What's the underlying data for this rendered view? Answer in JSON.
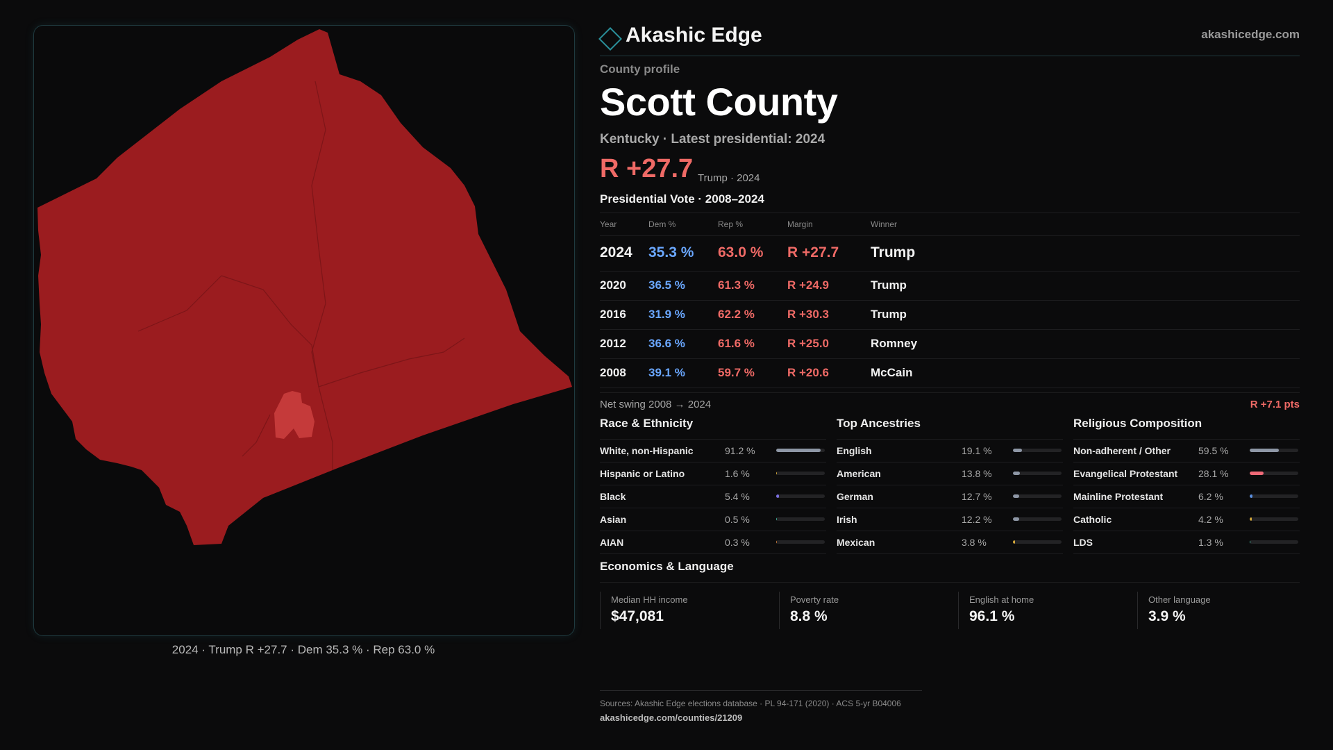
{
  "map": {
    "caption": "2024 · Trump R +27.7 · Dem 35.3 % · Rep 63.0 %",
    "county_fill": "#9b1c1f",
    "city_fill": "#c53a3a"
  },
  "brand": {
    "name": "Akashic Edge",
    "url": "akashicedge.com",
    "logo_icon": "diamond-icon"
  },
  "profile": {
    "label": "County profile",
    "county": "Scott County",
    "subline": "Kentucky · Latest presidential: 2024",
    "margin": "R +27.7",
    "margin_note": "Trump · 2024"
  },
  "vote": {
    "title": "Presidential Vote · 2008–2024",
    "headers": {
      "year": "Year",
      "dem": "Dem %",
      "rep": "Rep %",
      "margin": "Margin",
      "winner": "Winner"
    },
    "rows": [
      {
        "year": "2024",
        "dem": "35.3 %",
        "rep": "63.0 %",
        "margin": "R +27.7",
        "winner": "Trump"
      },
      {
        "year": "2020",
        "dem": "36.5 %",
        "rep": "61.3 %",
        "margin": "R +24.9",
        "winner": "Trump"
      },
      {
        "year": "2016",
        "dem": "31.9 %",
        "rep": "62.2 %",
        "margin": "R +30.3",
        "winner": "Trump"
      },
      {
        "year": "2012",
        "dem": "36.6 %",
        "rep": "61.6 %",
        "margin": "R +25.0",
        "winner": "Romney"
      },
      {
        "year": "2008",
        "dem": "39.1 %",
        "rep": "59.7 %",
        "margin": "R +20.6",
        "winner": "McCain"
      }
    ]
  },
  "swing": {
    "label": "Net swing 2008 → 2024",
    "value": "R +7.1 pts"
  },
  "demographics": [
    {
      "title": "Race & Ethnicity",
      "rows": [
        {
          "name": "White, non-Hispanic",
          "pct": "91.2 %",
          "value": 91.2,
          "color": "#8e97a6"
        },
        {
          "name": "Hispanic or Latino",
          "pct": "1.6 %",
          "value": 1.6,
          "color": "#d4a83a"
        },
        {
          "name": "Black",
          "pct": "5.4 %",
          "value": 5.4,
          "color": "#7b6fe0"
        },
        {
          "name": "Asian",
          "pct": "0.5 %",
          "value": 0.5,
          "color": "#3fb39a"
        },
        {
          "name": "AIAN",
          "pct": "0.3 %",
          "value": 0.3,
          "color": "#c97a3a"
        }
      ]
    },
    {
      "title": "Top Ancestries",
      "rows": [
        {
          "name": "English",
          "pct": "19.1 %",
          "value": 19.1,
          "color": "#8e97a6"
        },
        {
          "name": "American",
          "pct": "13.8 %",
          "value": 13.8,
          "color": "#8e97a6"
        },
        {
          "name": "German",
          "pct": "12.7 %",
          "value": 12.7,
          "color": "#8e97a6"
        },
        {
          "name": "Irish",
          "pct": "12.2 %",
          "value": 12.2,
          "color": "#8e97a6"
        },
        {
          "name": "Mexican",
          "pct": "3.8 %",
          "value": 3.8,
          "color": "#d4a83a"
        }
      ]
    },
    {
      "title": "Religious Composition",
      "rows": [
        {
          "name": "Non-adherent / Other",
          "pct": "59.5 %",
          "value": 59.5,
          "color": "#8e97a6"
        },
        {
          "name": "Evangelical Protestant",
          "pct": "28.1 %",
          "value": 28.1,
          "color": "#ef6a78"
        },
        {
          "name": "Mainline Protestant",
          "pct": "6.2 %",
          "value": 6.2,
          "color": "#5a8fe0"
        },
        {
          "name": "Catholic",
          "pct": "4.2 %",
          "value": 4.2,
          "color": "#d4a83a"
        },
        {
          "name": "LDS",
          "pct": "1.3 %",
          "value": 1.3,
          "color": "#3fb39a"
        }
      ]
    }
  ],
  "economics": {
    "title": "Economics & Language",
    "items": [
      {
        "label": "Median HH income",
        "value": "$47,081"
      },
      {
        "label": "Poverty rate",
        "value": "8.8 %"
      },
      {
        "label": "English at home",
        "value": "96.1 %"
      },
      {
        "label": "Other language",
        "value": "3.9 %"
      }
    ]
  },
  "sources": {
    "line1": "Sources: Akashic Edge elections database · PL 94-171 (2020) · ACS 5-yr B04006",
    "line2": "akashicedge.com/counties/21209"
  }
}
